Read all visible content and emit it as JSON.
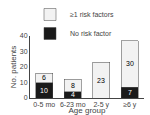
{
  "chart_data": {
    "type": "bar",
    "stacked": true,
    "categories": [
      "0-5 mo",
      "6-23 mo",
      "2-5 y",
      "≥6 y"
    ],
    "series": [
      {
        "name": "No risk factor",
        "color": "#1a1a1a",
        "values": [
          10,
          4,
          0,
          7
        ]
      },
      {
        "name": "≥1 risk factors",
        "color": "#f2f2f2",
        "values": [
          6,
          8,
          23,
          30
        ]
      }
    ],
    "xlabel": "Age group",
    "ylabel": "No. patients",
    "ylim": [
      0,
      40
    ],
    "yticks": [
      0,
      10,
      20,
      30,
      40
    ],
    "grid": false,
    "legend": "upper left",
    "data_labels": true
  }
}
